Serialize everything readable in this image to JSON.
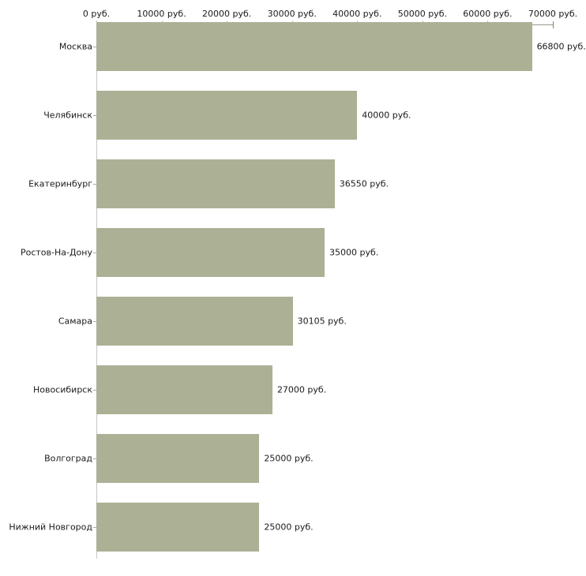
{
  "chart_data": {
    "type": "bar",
    "orientation": "horizontal",
    "title": "",
    "categories": [
      "Москва",
      "Челябинск",
      "Екатеринбург",
      "Ростов-На-Дону",
      "Самара",
      "Новосибирск",
      "Волгоград",
      "Нижний Новгород"
    ],
    "values": [
      66800,
      40000,
      36550,
      35000,
      30105,
      27000,
      25000,
      25000
    ],
    "value_labels": [
      "66800 руб.",
      "40000 руб.",
      "36550 руб.",
      "35000 руб.",
      "30105 руб.",
      "27000 руб.",
      "25000 руб.",
      "25000 руб."
    ],
    "x_axis": {
      "position": "top",
      "min": 0,
      "max": 70000,
      "step": 10000,
      "tick_labels": [
        "0 руб.",
        "10000 руб.",
        "20000 руб.",
        "30000 руб.",
        "40000 руб.",
        "50000 руб.",
        "60000 руб.",
        "70000 руб."
      ],
      "unit": "руб."
    },
    "legend": null,
    "grid": false,
    "colors": {
      "bar": "#acb196",
      "axis_line_top": "#99998c",
      "axis_end_tick": "#84847a",
      "axis_line_left": "#c6c6c6",
      "tick": "#c9c7a0",
      "category_tick": "#a9a9a2",
      "text": "#1a1a1a",
      "background": "#ffffff"
    }
  }
}
